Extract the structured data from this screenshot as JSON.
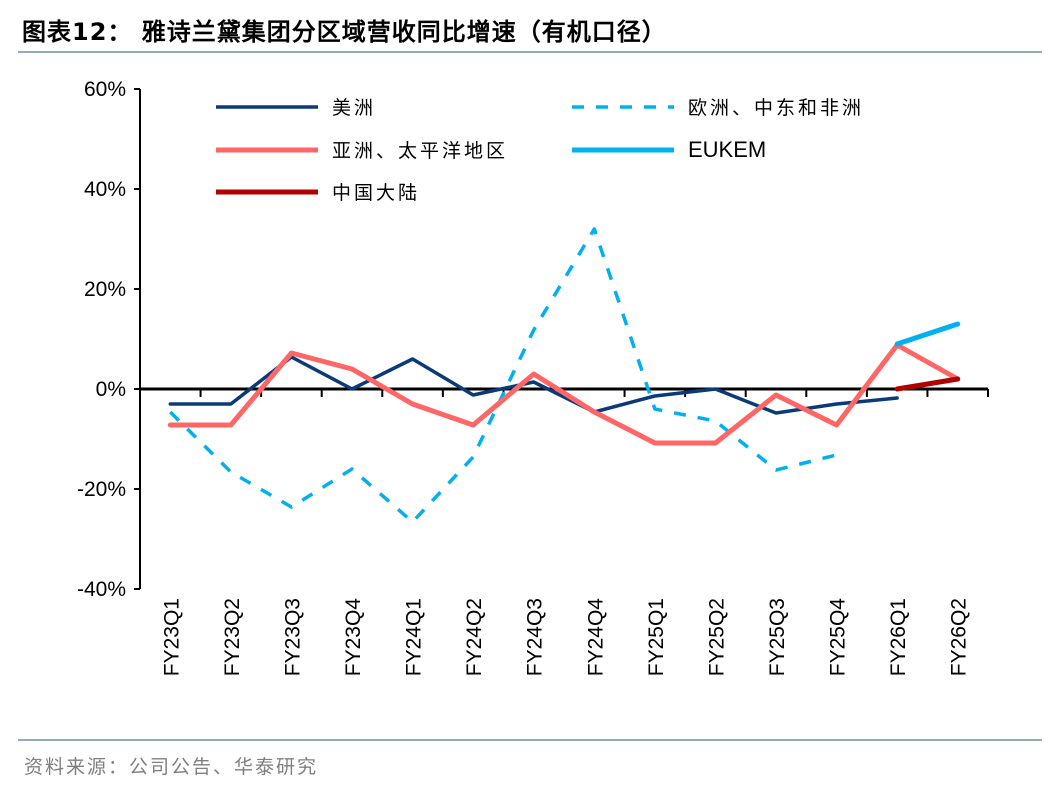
{
  "title": "图表12：  雅诗兰黛集团分区域营收同比增速（有机口径）",
  "source": "资料来源：公司公告、华泰研究",
  "chart_data": {
    "type": "line",
    "title": "图表12：  雅诗兰黛集团分区域营收同比增速（有机口径）",
    "xlabel": "",
    "ylabel": "",
    "ylim": [
      -40,
      60
    ],
    "yticks": [
      -40,
      -20,
      0,
      20,
      40,
      60
    ],
    "ytick_labels": [
      "-40%",
      "-20%",
      "0%",
      "20%",
      "40%",
      "60%"
    ],
    "grid": false,
    "legend_position": "top",
    "categories": [
      "FY23Q1",
      "FY23Q2",
      "FY23Q3",
      "FY23Q4",
      "FY24Q1",
      "FY24Q2",
      "FY24Q3",
      "FY24Q4",
      "FY25Q1",
      "FY25Q2",
      "FY25Q3",
      "FY25Q4",
      "FY26Q1",
      "FY26Q2"
    ],
    "series": [
      {
        "name": "美洲",
        "color": "#0b3a78",
        "style": "solid",
        "values": [
          -3,
          -3,
          6.4,
          0,
          6,
          -1.2,
          1.4,
          -4.6,
          -1.4,
          0,
          -4.8,
          -3,
          -1.8,
          null
        ]
      },
      {
        "name": "欧洲、中东和非洲",
        "color": "#00b0f0",
        "style": "dashed",
        "values": [
          -4.6,
          -16.6,
          -23.6,
          -16,
          -26.6,
          -13.6,
          11.8,
          32,
          -4,
          -6.4,
          -16.2,
          -13.2,
          null,
          null
        ]
      },
      {
        "name": "亚洲、太平洋地区",
        "color": "#ff6666",
        "style": "solid-thick",
        "values": [
          -7.2,
          -7.2,
          7.2,
          4,
          -3,
          -7.2,
          3,
          -4.6,
          -10.8,
          -10.8,
          -1.2,
          -7.2,
          8.8,
          2
        ]
      },
      {
        "name": "EUKEM",
        "color": "#00b0f0",
        "style": "solid-thick",
        "values": [
          null,
          null,
          null,
          null,
          null,
          null,
          null,
          null,
          null,
          null,
          null,
          null,
          9,
          13
        ]
      },
      {
        "name": "中国大陆",
        "color": "#b00000",
        "style": "solid-thick",
        "values": [
          null,
          null,
          null,
          null,
          null,
          null,
          null,
          null,
          null,
          null,
          null,
          null,
          0,
          2
        ]
      }
    ]
  }
}
